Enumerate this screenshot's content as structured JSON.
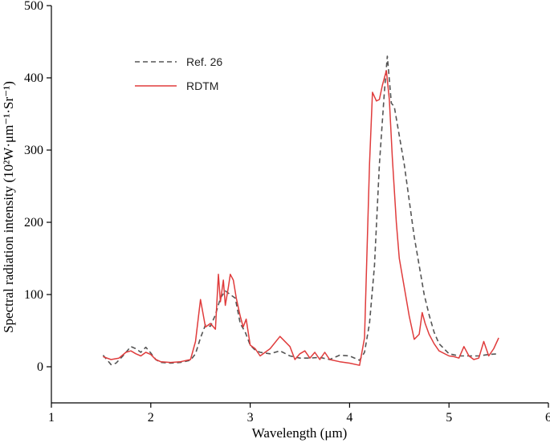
{
  "chart_data": {
    "type": "line",
    "title": "",
    "xlabel": "Wavelength (μm)",
    "ylabel": "Spectral radiation intensity (10²W·μm⁻¹·Sr⁻¹)",
    "xlim": [
      1,
      6
    ],
    "ylim": [
      -50,
      500
    ],
    "xticks": [
      1,
      2,
      3,
      4,
      5,
      6
    ],
    "yticks": [
      0,
      100,
      200,
      300,
      400,
      500
    ],
    "xtick_labels": [
      "1",
      "2",
      "3",
      "4",
      "5",
      "6"
    ],
    "ytick_labels": [
      "0",
      "100",
      "200",
      "300",
      "400",
      "500"
    ],
    "grid": false,
    "legend_position": "top-left",
    "series": [
      {
        "name": "Ref. 26",
        "color": "#555555",
        "style": "dashed",
        "x": [
          1.52,
          1.6,
          1.65,
          1.72,
          1.8,
          1.85,
          1.9,
          1.95,
          2.0,
          2.05,
          2.1,
          2.2,
          2.3,
          2.4,
          2.45,
          2.5,
          2.55,
          2.6,
          2.65,
          2.7,
          2.75,
          2.8,
          2.85,
          2.9,
          2.95,
          3.0,
          3.05,
          3.1,
          3.2,
          3.3,
          3.4,
          3.5,
          3.6,
          3.7,
          3.8,
          3.9,
          4.0,
          4.1,
          4.15,
          4.2,
          4.25,
          4.3,
          4.35,
          4.38,
          4.42,
          4.45,
          4.5,
          4.55,
          4.6,
          4.65,
          4.7,
          4.75,
          4.8,
          4.85,
          4.9,
          5.0,
          5.1,
          5.2,
          5.3,
          5.4,
          5.5
        ],
        "y": [
          16,
          3,
          5,
          15,
          28,
          25,
          20,
          27,
          19,
          10,
          6,
          5,
          6,
          9,
          18,
          40,
          58,
          56,
          72,
          95,
          105,
          100,
          95,
          60,
          48,
          30,
          23,
          20,
          18,
          22,
          15,
          12,
          12,
          13,
          10,
          16,
          15,
          9,
          20,
          60,
          140,
          280,
          380,
          430,
          365,
          360,
          320,
          280,
          230,
          180,
          140,
          100,
          72,
          48,
          32,
          18,
          15,
          15,
          15,
          17,
          18
        ]
      },
      {
        "name": "RDTM",
        "color": "#e03c3c",
        "style": "solid",
        "x": [
          1.52,
          1.6,
          1.68,
          1.75,
          1.8,
          1.85,
          1.9,
          1.95,
          2.0,
          2.05,
          2.1,
          2.2,
          2.3,
          2.4,
          2.45,
          2.5,
          2.55,
          2.6,
          2.65,
          2.68,
          2.7,
          2.73,
          2.75,
          2.78,
          2.8,
          2.83,
          2.86,
          2.9,
          2.93,
          2.96,
          3.0,
          3.05,
          3.1,
          3.2,
          3.3,
          3.4,
          3.45,
          3.5,
          3.55,
          3.6,
          3.65,
          3.7,
          3.75,
          3.8,
          3.9,
          4.0,
          4.1,
          4.15,
          4.2,
          4.23,
          4.27,
          4.3,
          4.33,
          4.37,
          4.4,
          4.43,
          4.47,
          4.5,
          4.55,
          4.6,
          4.65,
          4.7,
          4.73,
          4.76,
          4.8,
          4.85,
          4.9,
          5.0,
          5.05,
          5.1,
          5.15,
          5.2,
          5.25,
          5.3,
          5.35,
          5.4,
          5.45,
          5.5
        ],
        "y": [
          14,
          10,
          12,
          20,
          22,
          18,
          15,
          20,
          17,
          10,
          7,
          6,
          7,
          10,
          35,
          93,
          55,
          60,
          52,
          128,
          90,
          120,
          85,
          110,
          128,
          120,
          95,
          70,
          55,
          66,
          30,
          25,
          15,
          25,
          42,
          28,
          10,
          18,
          22,
          12,
          20,
          10,
          20,
          10,
          7,
          5,
          2,
          40,
          280,
          380,
          368,
          370,
          390,
          410,
          370,
          290,
          200,
          150,
          110,
          70,
          38,
          45,
          75,
          60,
          45,
          32,
          22,
          15,
          14,
          12,
          28,
          15,
          10,
          12,
          35,
          15,
          25,
          40
        ]
      }
    ]
  }
}
